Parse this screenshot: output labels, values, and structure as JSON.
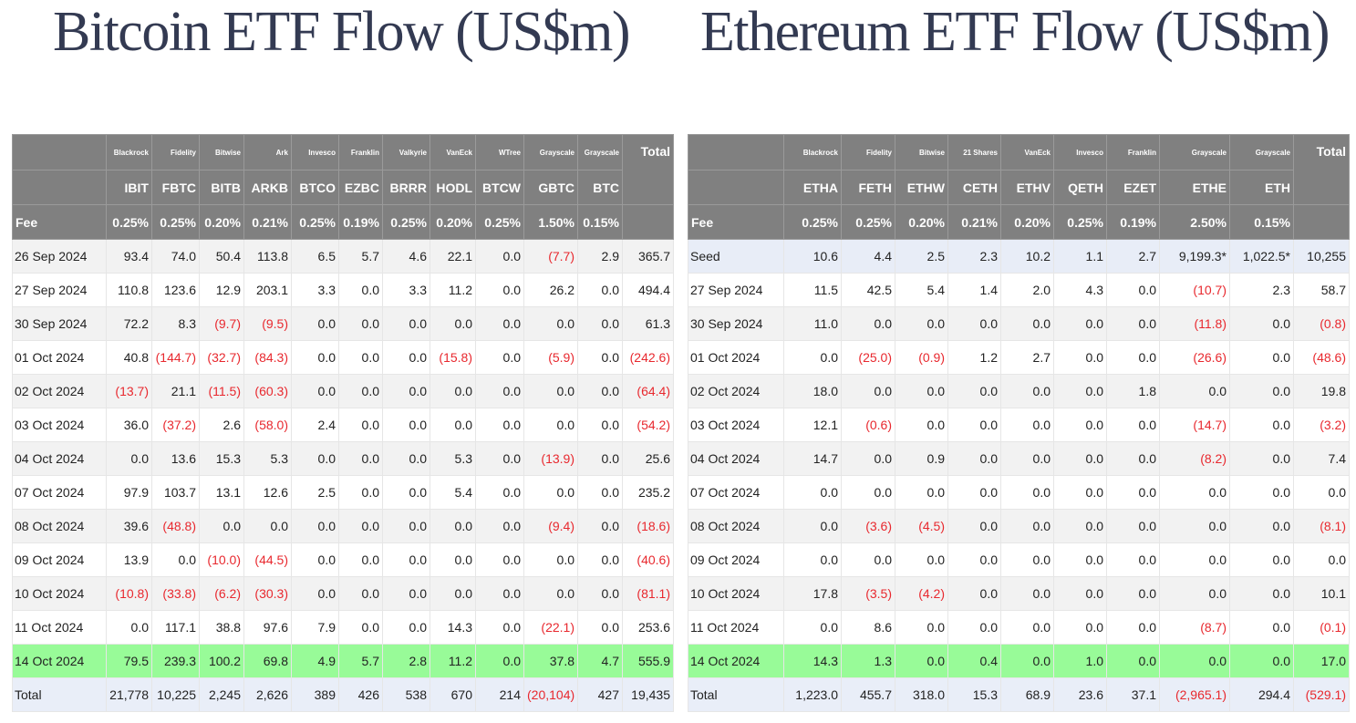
{
  "colors": {
    "header_bg": "#808080",
    "header_text": "#ffffff",
    "negative": "#e8282e",
    "highlight_row": "#98fb98",
    "total_row": "#e9eef8",
    "title": "#333a52"
  },
  "btc": {
    "title": "Bitcoin ETF Flow (US$m)",
    "issuers": [
      "Blackrock",
      "Fidelity",
      "Bitwise",
      "Ark",
      "Invesco",
      "Franklin",
      "Valkyrie",
      "VanEck",
      "WTree",
      "Grayscale",
      "Grayscale"
    ],
    "tickers": [
      "IBIT",
      "FBTC",
      "BITB",
      "ARKB",
      "BTCO",
      "EZBC",
      "BRRR",
      "HODL",
      "BTCW",
      "GBTC",
      "BTC"
    ],
    "total_label": "Total",
    "fee_label": "Fee",
    "fees": [
      "0.25%",
      "0.25%",
      "0.20%",
      "0.21%",
      "0.25%",
      "0.19%",
      "0.25%",
      "0.20%",
      "0.25%",
      "1.50%",
      "0.15%"
    ],
    "rows": [
      {
        "date": "26 Sep 2024",
        "values": [
          "93.4",
          "74.0",
          "50.4",
          "113.8",
          "6.5",
          "5.7",
          "4.6",
          "22.1",
          "0.0",
          "(7.7)",
          "2.9",
          "365.7"
        ]
      },
      {
        "date": "27 Sep 2024",
        "values": [
          "110.8",
          "123.6",
          "12.9",
          "203.1",
          "3.3",
          "0.0",
          "3.3",
          "11.2",
          "0.0",
          "26.2",
          "0.0",
          "494.4"
        ]
      },
      {
        "date": "30 Sep 2024",
        "values": [
          "72.2",
          "8.3",
          "(9.7)",
          "(9.5)",
          "0.0",
          "0.0",
          "0.0",
          "0.0",
          "0.0",
          "0.0",
          "0.0",
          "61.3"
        ]
      },
      {
        "date": "01 Oct 2024",
        "values": [
          "40.8",
          "(144.7)",
          "(32.7)",
          "(84.3)",
          "0.0",
          "0.0",
          "0.0",
          "(15.8)",
          "0.0",
          "(5.9)",
          "0.0",
          "(242.6)"
        ]
      },
      {
        "date": "02 Oct 2024",
        "values": [
          "(13.7)",
          "21.1",
          "(11.5)",
          "(60.3)",
          "0.0",
          "0.0",
          "0.0",
          "0.0",
          "0.0",
          "0.0",
          "0.0",
          "(64.4)"
        ]
      },
      {
        "date": "03 Oct 2024",
        "values": [
          "36.0",
          "(37.2)",
          "2.6",
          "(58.0)",
          "2.4",
          "0.0",
          "0.0",
          "0.0",
          "0.0",
          "0.0",
          "0.0",
          "(54.2)"
        ]
      },
      {
        "date": "04 Oct 2024",
        "values": [
          "0.0",
          "13.6",
          "15.3",
          "5.3",
          "0.0",
          "0.0",
          "0.0",
          "5.3",
          "0.0",
          "(13.9)",
          "0.0",
          "25.6"
        ]
      },
      {
        "date": "07 Oct 2024",
        "values": [
          "97.9",
          "103.7",
          "13.1",
          "12.6",
          "2.5",
          "0.0",
          "0.0",
          "5.4",
          "0.0",
          "0.0",
          "0.0",
          "235.2"
        ]
      },
      {
        "date": "08 Oct 2024",
        "values": [
          "39.6",
          "(48.8)",
          "0.0",
          "0.0",
          "0.0",
          "0.0",
          "0.0",
          "0.0",
          "0.0",
          "(9.4)",
          "0.0",
          "(18.6)"
        ]
      },
      {
        "date": "09 Oct 2024",
        "values": [
          "13.9",
          "0.0",
          "(10.0)",
          "(44.5)",
          "0.0",
          "0.0",
          "0.0",
          "0.0",
          "0.0",
          "0.0",
          "0.0",
          "(40.6)"
        ]
      },
      {
        "date": "10 Oct 2024",
        "values": [
          "(10.8)",
          "(33.8)",
          "(6.2)",
          "(30.3)",
          "0.0",
          "0.0",
          "0.0",
          "0.0",
          "0.0",
          "0.0",
          "0.0",
          "(81.1)"
        ]
      },
      {
        "date": "11 Oct 2024",
        "values": [
          "0.0",
          "117.1",
          "38.8",
          "97.6",
          "7.9",
          "0.0",
          "0.0",
          "14.3",
          "0.0",
          "(22.1)",
          "0.0",
          "253.6"
        ]
      },
      {
        "date": "14 Oct 2024",
        "values": [
          "79.5",
          "239.3",
          "100.2",
          "69.8",
          "4.9",
          "5.7",
          "2.8",
          "11.2",
          "0.0",
          "37.8",
          "4.7",
          "555.9"
        ]
      },
      {
        "date": "Total",
        "values": [
          "21,778",
          "10,225",
          "2,245",
          "2,626",
          "389",
          "426",
          "538",
          "670",
          "214",
          "(20,104)",
          "427",
          "19,435"
        ]
      }
    ]
  },
  "eth": {
    "title": "Ethereum ETF Flow (US$m)",
    "issuers": [
      "Blackrock",
      "Fidelity",
      "Bitwise",
      "21 Shares",
      "VanEck",
      "Invesco",
      "Franklin",
      "Grayscale",
      "Grayscale"
    ],
    "tickers": [
      "ETHA",
      "FETH",
      "ETHW",
      "CETH",
      "ETHV",
      "QETH",
      "EZET",
      "ETHE",
      "ETH"
    ],
    "total_label": "Total",
    "fee_label": "Fee",
    "fees": [
      "0.25%",
      "0.25%",
      "0.20%",
      "0.21%",
      "0.20%",
      "0.25%",
      "0.19%",
      "2.50%",
      "0.15%"
    ],
    "rows": [
      {
        "date": "Seed",
        "values": [
          "10.6",
          "4.4",
          "2.5",
          "2.3",
          "10.2",
          "1.1",
          "2.7",
          "9,199.3*",
          "1,022.5*",
          "10,255"
        ]
      },
      {
        "date": "27 Sep 2024",
        "values": [
          "11.5",
          "42.5",
          "5.4",
          "1.4",
          "2.0",
          "4.3",
          "0.0",
          "(10.7)",
          "2.3",
          "58.7"
        ]
      },
      {
        "date": "30 Sep 2024",
        "values": [
          "11.0",
          "0.0",
          "0.0",
          "0.0",
          "0.0",
          "0.0",
          "0.0",
          "(11.8)",
          "0.0",
          "(0.8)"
        ]
      },
      {
        "date": "01 Oct 2024",
        "values": [
          "0.0",
          "(25.0)",
          "(0.9)",
          "1.2",
          "2.7",
          "0.0",
          "0.0",
          "(26.6)",
          "0.0",
          "(48.6)"
        ]
      },
      {
        "date": "02 Oct 2024",
        "values": [
          "18.0",
          "0.0",
          "0.0",
          "0.0",
          "0.0",
          "0.0",
          "1.8",
          "0.0",
          "0.0",
          "19.8"
        ]
      },
      {
        "date": "03 Oct 2024",
        "values": [
          "12.1",
          "(0.6)",
          "0.0",
          "0.0",
          "0.0",
          "0.0",
          "0.0",
          "(14.7)",
          "0.0",
          "(3.2)"
        ]
      },
      {
        "date": "04 Oct 2024",
        "values": [
          "14.7",
          "0.0",
          "0.9",
          "0.0",
          "0.0",
          "0.0",
          "0.0",
          "(8.2)",
          "0.0",
          "7.4"
        ]
      },
      {
        "date": "07 Oct 2024",
        "values": [
          "0.0",
          "0.0",
          "0.0",
          "0.0",
          "0.0",
          "0.0",
          "0.0",
          "0.0",
          "0.0",
          "0.0"
        ]
      },
      {
        "date": "08 Oct 2024",
        "values": [
          "0.0",
          "(3.6)",
          "(4.5)",
          "0.0",
          "0.0",
          "0.0",
          "0.0",
          "0.0",
          "0.0",
          "(8.1)"
        ]
      },
      {
        "date": "09 Oct 2024",
        "values": [
          "0.0",
          "0.0",
          "0.0",
          "0.0",
          "0.0",
          "0.0",
          "0.0",
          "0.0",
          "0.0",
          "0.0"
        ]
      },
      {
        "date": "10 Oct 2024",
        "values": [
          "17.8",
          "(3.5)",
          "(4.2)",
          "0.0",
          "0.0",
          "0.0",
          "0.0",
          "0.0",
          "0.0",
          "10.1"
        ]
      },
      {
        "date": "11 Oct 2024",
        "values": [
          "0.0",
          "8.6",
          "0.0",
          "0.0",
          "0.0",
          "0.0",
          "0.0",
          "(8.7)",
          "0.0",
          "(0.1)"
        ]
      },
      {
        "date": "14 Oct 2024",
        "values": [
          "14.3",
          "1.3",
          "0.0",
          "0.4",
          "0.0",
          "1.0",
          "0.0",
          "0.0",
          "0.0",
          "17.0"
        ]
      },
      {
        "date": "Total",
        "values": [
          "1,223.0",
          "455.7",
          "318.0",
          "15.3",
          "68.9",
          "23.6",
          "37.1",
          "(2,965.1)",
          "294.4",
          "(529.1)"
        ]
      }
    ]
  }
}
